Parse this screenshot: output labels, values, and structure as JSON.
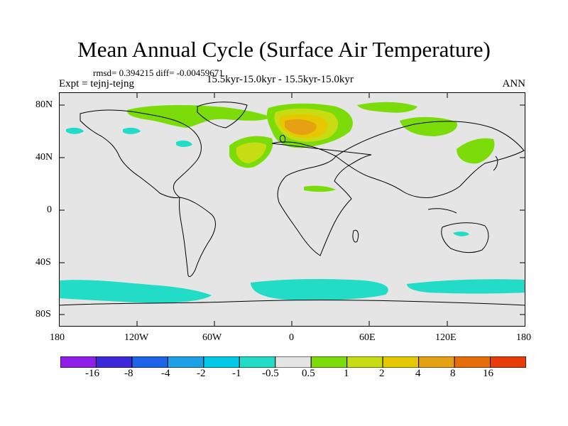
{
  "title": "Mean Annual Cycle (Surface Air Temperature)",
  "stats": "rmsd= 0.394215 diff= -0.00459671",
  "experiment": "Expt = tejnj-tejng",
  "period": "15.5kyr-15.0kyr - 15.5kyr-15.0kyr",
  "season": "ANN",
  "map": {
    "background_color": "#e5e5e5",
    "lat_ticks": [
      "80N",
      "40N",
      "0",
      "40S",
      "80S"
    ],
    "lon_ticks": [
      "180",
      "120W",
      "60W",
      "0",
      "60E",
      "120E",
      "180"
    ]
  },
  "colorbar": {
    "colors": [
      "#8f1ee8",
      "#3c28d6",
      "#1e64e6",
      "#1ea0e6",
      "#00c8e6",
      "#22dcc8",
      "#e5e5e5",
      "#7cdc0a",
      "#c8dc14",
      "#e6c800",
      "#e6a014",
      "#e66e0a",
      "#e63c0a"
    ],
    "labels": [
      "-16",
      "-8",
      "-4",
      "-2",
      "-1",
      "-0.5",
      "0.5",
      "1",
      "2",
      "4",
      "8",
      "16"
    ]
  }
}
